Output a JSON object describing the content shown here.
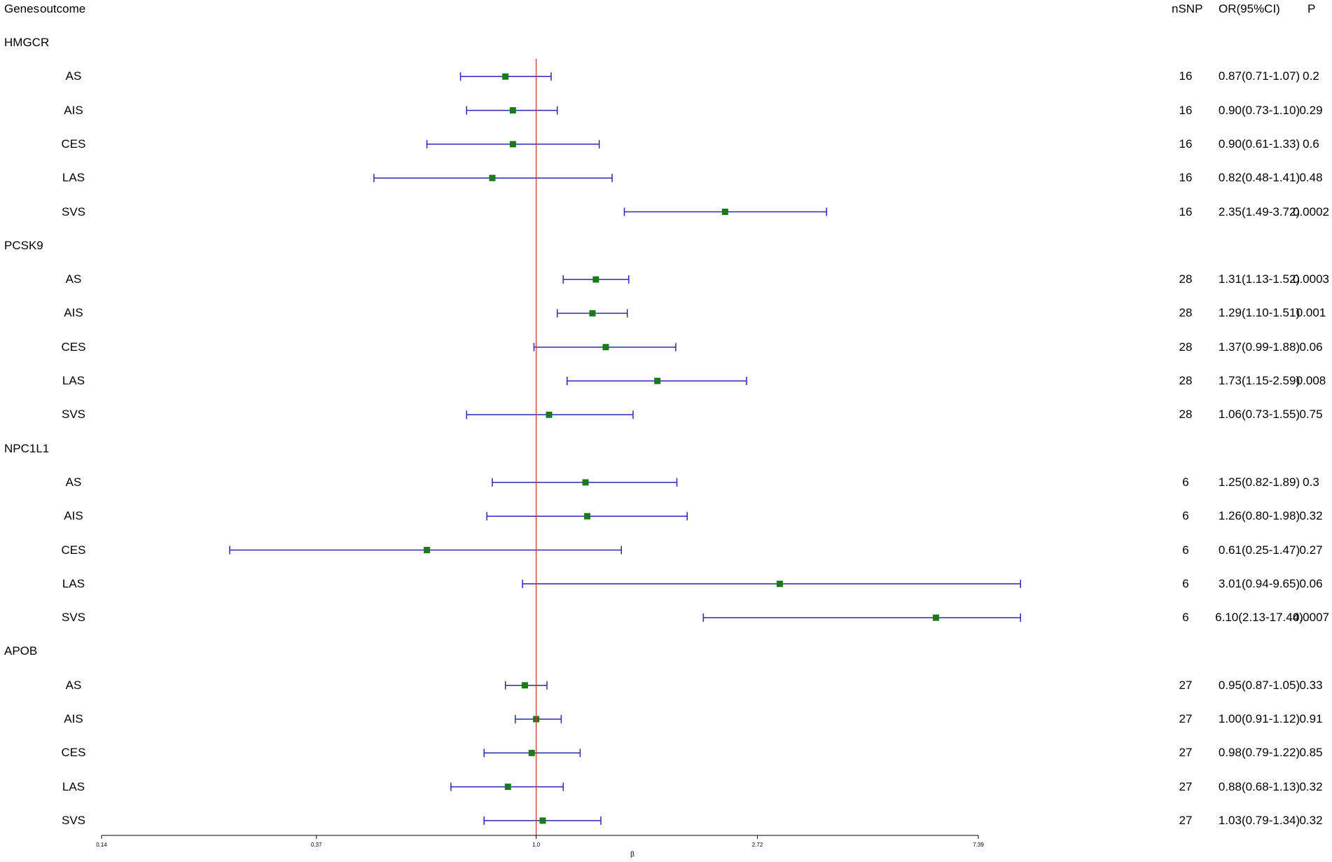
{
  "header": {
    "genes": "Genes",
    "outcome": "outcome",
    "nsnp": "nSNP",
    "or": "OR(95%CI)",
    "p": "P"
  },
  "chart_data": {
    "type": "forest",
    "xlabel": "β",
    "x_scale": "log",
    "xlim": [
      0.14,
      7.39
    ],
    "ticks": [
      {
        "value": 0.14,
        "label": "0.14"
      },
      {
        "value": 0.37,
        "label": "0.37"
      },
      {
        "value": 1.0,
        "label": "1.0"
      },
      {
        "value": 2.72,
        "label": "2.72"
      },
      {
        "value": 7.39,
        "label": "7.39"
      }
    ],
    "reference_line": 1.0,
    "colors": {
      "point": "#1a7a1a",
      "ci": "#2828b4",
      "ref": "#e03030"
    },
    "groups": [
      {
        "gene": "HMGCR",
        "rows": [
          {
            "outcome": "AS",
            "nsnp": "16",
            "or": 0.87,
            "lo": 0.71,
            "hi": 1.07,
            "or_text": "0.87(0.71-1.07)",
            "p": "0.2"
          },
          {
            "outcome": "AIS",
            "nsnp": "16",
            "or": 0.9,
            "lo": 0.73,
            "hi": 1.1,
            "or_text": "0.90(0.73-1.10)",
            "p": "0.29"
          },
          {
            "outcome": "CES",
            "nsnp": "16",
            "or": 0.9,
            "lo": 0.61,
            "hi": 1.33,
            "or_text": "0.90(0.61-1.33)",
            "p": "0.6"
          },
          {
            "outcome": "LAS",
            "nsnp": "16",
            "or": 0.82,
            "lo": 0.48,
            "hi": 1.41,
            "or_text": "0.82(0.48-1.41)",
            "p": "0.48"
          },
          {
            "outcome": "SVS",
            "nsnp": "16",
            "or": 2.35,
            "lo": 1.49,
            "hi": 3.72,
            "or_text": "2.35(1.49-3.72)",
            "p": "0.0002"
          }
        ]
      },
      {
        "gene": "PCSK9",
        "rows": [
          {
            "outcome": "AS",
            "nsnp": "28",
            "or": 1.31,
            "lo": 1.13,
            "hi": 1.52,
            "or_text": "1.31(1.13-1.52)",
            "p": "0.0003"
          },
          {
            "outcome": "AIS",
            "nsnp": "28",
            "or": 1.29,
            "lo": 1.1,
            "hi": 1.51,
            "or_text": "1.29(1.10-1.51)",
            "p": "0.001"
          },
          {
            "outcome": "CES",
            "nsnp": "28",
            "or": 1.37,
            "lo": 0.99,
            "hi": 1.88,
            "or_text": "1.37(0.99-1.88)",
            "p": "0.06"
          },
          {
            "outcome": "LAS",
            "nsnp": "28",
            "or": 1.73,
            "lo": 1.15,
            "hi": 2.59,
            "or_text": "1.73(1.15-2.59)",
            "p": "0.008"
          },
          {
            "outcome": "SVS",
            "nsnp": "28",
            "or": 1.06,
            "lo": 0.73,
            "hi": 1.55,
            "or_text": "1.06(0.73-1.55)",
            "p": "0.75"
          }
        ]
      },
      {
        "gene": "NPC1L1",
        "rows": [
          {
            "outcome": "AS",
            "nsnp": "6",
            "or": 1.25,
            "lo": 0.82,
            "hi": 1.89,
            "or_text": "1.25(0.82-1.89)",
            "p": "0.3"
          },
          {
            "outcome": "AIS",
            "nsnp": "6",
            "or": 1.26,
            "lo": 0.8,
            "hi": 1.98,
            "or_text": "1.26(0.80-1.98)",
            "p": "0.32"
          },
          {
            "outcome": "CES",
            "nsnp": "6",
            "or": 0.61,
            "lo": 0.25,
            "hi": 1.47,
            "or_text": "0.61(0.25-1.47)",
            "p": "0.27"
          },
          {
            "outcome": "LAS",
            "nsnp": "6",
            "or": 3.01,
            "lo": 0.94,
            "hi": 9.65,
            "or_text": "3.01(0.94-9.65)",
            "p": "0.06"
          },
          {
            "outcome": "SVS",
            "nsnp": "6",
            "or": 6.1,
            "lo": 2.13,
            "hi": 17.44,
            "or_text": "6.10(2.13-17.44)",
            "p": "0.0007"
          }
        ]
      },
      {
        "gene": "APOB",
        "rows": [
          {
            "outcome": "AS",
            "nsnp": "27",
            "or": 0.95,
            "lo": 0.87,
            "hi": 1.05,
            "or_text": "0.95(0.87-1.05)",
            "p": "0.33"
          },
          {
            "outcome": "AIS",
            "nsnp": "27",
            "or": 1.0,
            "lo": 0.91,
            "hi": 1.12,
            "or_text": "1.00(0.91-1.12)",
            "p": "0.91"
          },
          {
            "outcome": "CES",
            "nsnp": "27",
            "or": 0.98,
            "lo": 0.79,
            "hi": 1.22,
            "or_text": "0.98(0.79-1.22)",
            "p": "0.85"
          },
          {
            "outcome": "LAS",
            "nsnp": "27",
            "or": 0.88,
            "lo": 0.68,
            "hi": 1.13,
            "or_text": "0.88(0.68-1.13)",
            "p": "0.32"
          },
          {
            "outcome": "SVS",
            "nsnp": "27",
            "or": 1.03,
            "lo": 0.79,
            "hi": 1.34,
            "or_text": "1.03(0.79-1.34)",
            "p": "0.32"
          }
        ]
      }
    ]
  }
}
